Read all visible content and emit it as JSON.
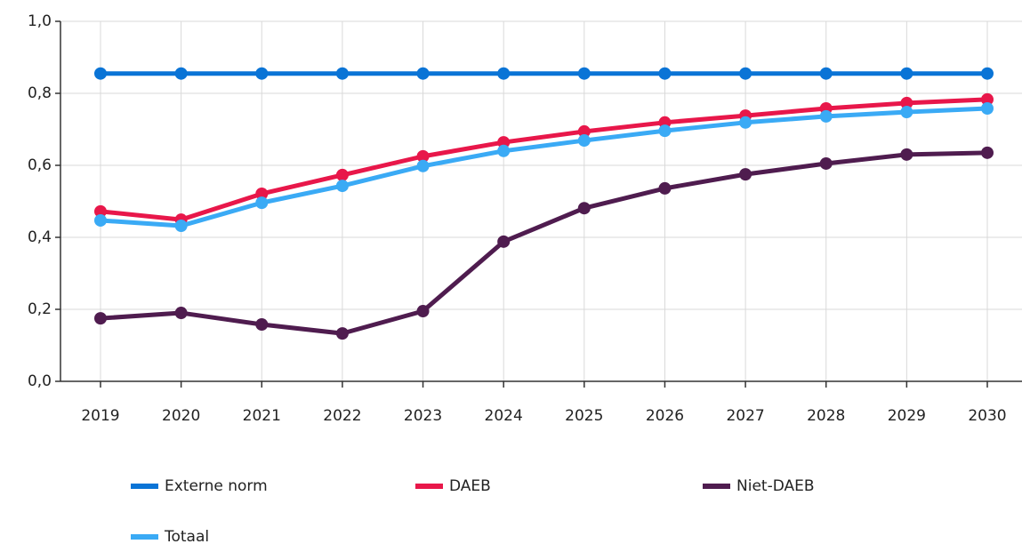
{
  "chart_data": {
    "type": "line",
    "categories": [
      "2019",
      "2020",
      "2021",
      "2022",
      "2023",
      "2024",
      "2025",
      "2026",
      "2027",
      "2028",
      "2029",
      "2030"
    ],
    "series": [
      {
        "name": "Externe norm",
        "color": "#0a74d6",
        "values": [
          0.855,
          0.855,
          0.855,
          0.855,
          0.855,
          0.855,
          0.855,
          0.855,
          0.855,
          0.855,
          0.855,
          0.855
        ]
      },
      {
        "name": "DAEB",
        "color": "#e8174a",
        "values": [
          0.472,
          0.449,
          0.521,
          0.573,
          0.625,
          0.664,
          0.694,
          0.719,
          0.738,
          0.758,
          0.773,
          0.783
        ]
      },
      {
        "name": "Niet-DAEB",
        "color": "#4f1c4f",
        "values": [
          0.175,
          0.19,
          0.158,
          0.133,
          0.195,
          0.388,
          0.481,
          0.536,
          0.575,
          0.605,
          0.63,
          0.635
        ]
      },
      {
        "name": "Totaal",
        "color": "#3aaaf5",
        "values": [
          0.447,
          0.432,
          0.496,
          0.543,
          0.598,
          0.64,
          0.669,
          0.696,
          0.719,
          0.736,
          0.748,
          0.758
        ]
      }
    ],
    "ylim": [
      0,
      1
    ],
    "yticks": [
      {
        "value": 0,
        "label": "0,0"
      },
      {
        "value": 0.2,
        "label": "0,2"
      },
      {
        "value": 0.4,
        "label": "0,4"
      },
      {
        "value": 0.6,
        "label": "0,6"
      },
      {
        "value": 0.8,
        "label": "0,8"
      },
      {
        "value": 1,
        "label": "1,0"
      }
    ],
    "grid": true
  }
}
